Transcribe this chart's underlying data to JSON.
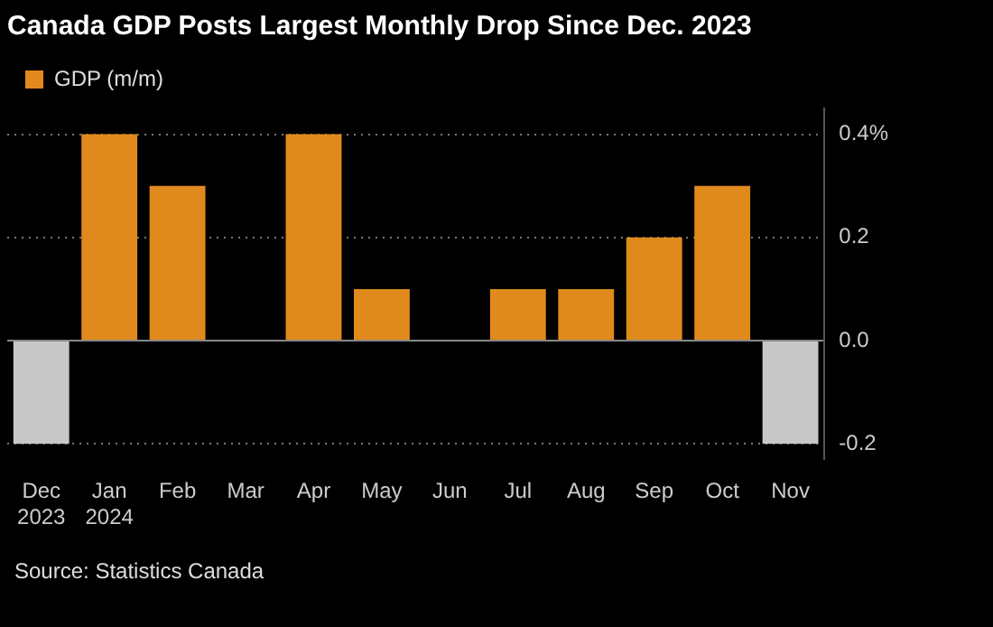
{
  "chart_data": {
    "type": "bar",
    "title": "Canada GDP Posts Largest Monthly Drop Since Dec. 2023",
    "categories": [
      "Dec 2023",
      "Jan 2024",
      "Feb",
      "Mar",
      "Apr",
      "May",
      "Jun",
      "Jul",
      "Aug",
      "Sep",
      "Oct",
      "Nov"
    ],
    "series": [
      {
        "name": "GDP (m/m)",
        "color": "#e08a1e",
        "values": [
          null,
          0.4,
          0.3,
          0,
          0.4,
          0.1,
          0,
          0.1,
          0.1,
          0.2,
          0.3,
          null
        ]
      },
      {
        "color": "#c8c8c8",
        "values": [
          -0.2,
          null,
          null,
          null,
          null,
          null,
          null,
          null,
          null,
          null,
          null,
          -0.2
        ]
      }
    ],
    "ylim": [
      -0.23,
      0.45
    ],
    "yticks": [
      -0.2,
      {
        "value": 0,
        "label": "0.0"
      },
      0.2,
      {
        "value": 0.4,
        "label": "0.4%"
      }
    ],
    "grid": "y",
    "legend": "top left",
    "annotations": [
      "Source: Statistics Canada"
    ]
  }
}
